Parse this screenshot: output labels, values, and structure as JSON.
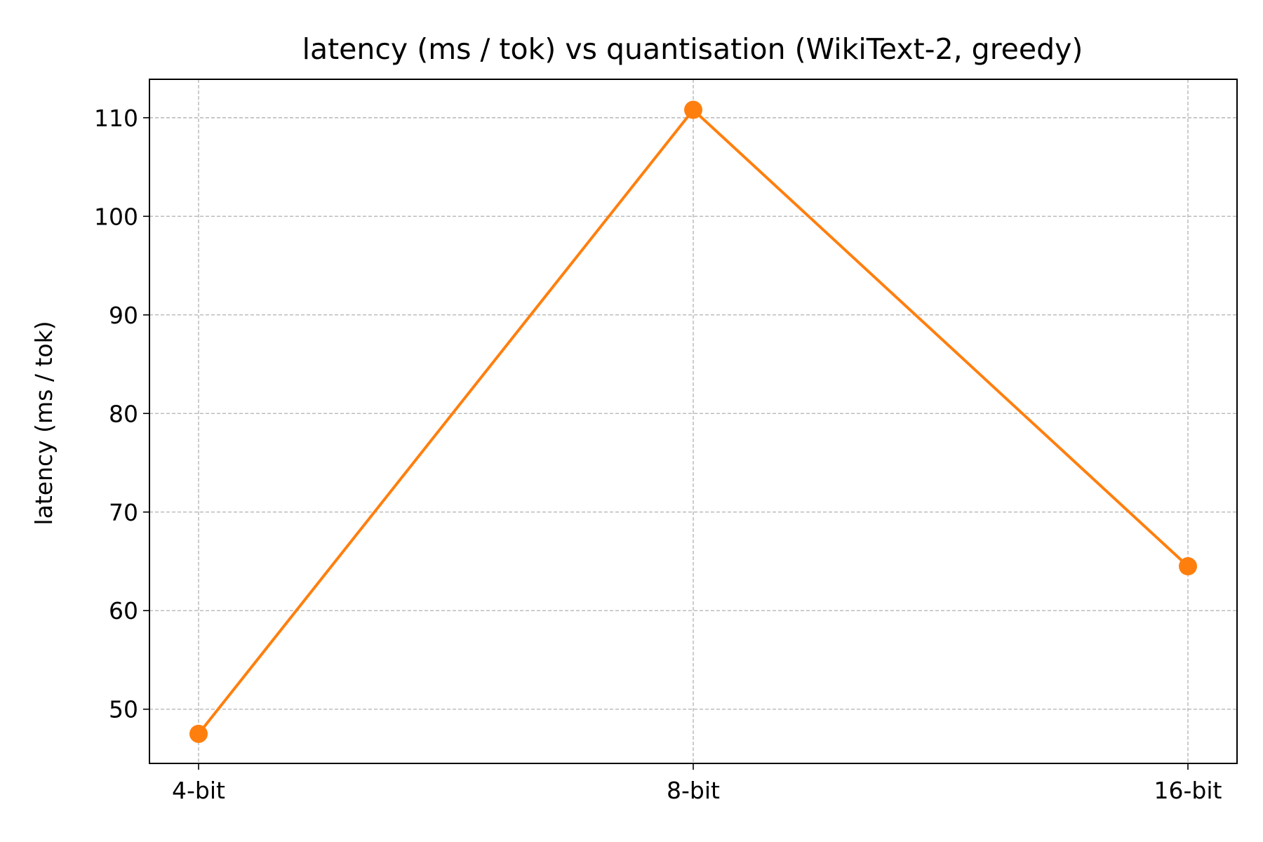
{
  "chart_data": {
    "type": "line",
    "title": "latency (ms / tok) vs quantisation (WikiText-2, greedy)",
    "xlabel": "",
    "ylabel": "latency (ms / tok)",
    "categories": [
      "4-bit",
      "8-bit",
      "16-bit"
    ],
    "series": [
      {
        "values": [
          47.5,
          110.8,
          64.5
        ],
        "color": "#ff7f0e"
      }
    ],
    "ylim": [
      44.5,
      113.9
    ],
    "yticks": [
      50,
      60,
      70,
      80,
      90,
      100,
      110
    ],
    "grid": true,
    "marker": "circle"
  }
}
